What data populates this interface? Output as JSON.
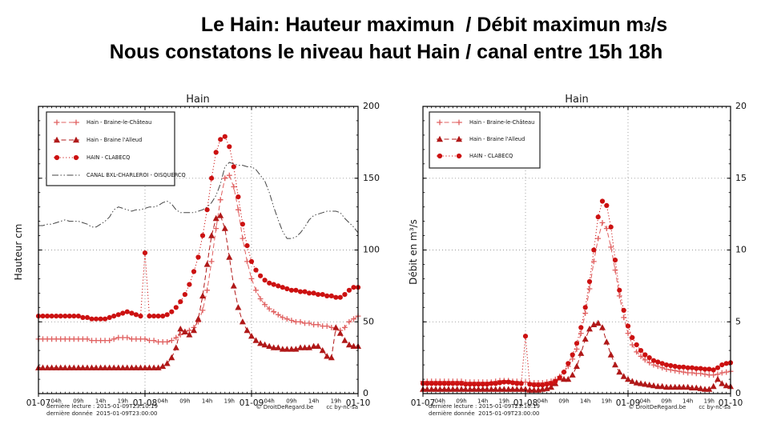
{
  "header": {
    "title_line1": {
      "pre": "Le Hain: Hauteur maximun  / Débit maximun m",
      "sub": "3",
      "post": "/s"
    },
    "title_line2": "Nous constatons le niveau haut Hain / canal entre 15h 18h"
  },
  "footer": {
    "last_read": "dernière lecture : 2015-01-09T23:10:19",
    "last_data": "dernière donnée  2015-01-09T23:00:00",
    "copyright": "© DroitDeRegard.be",
    "license": "cc by-nc-sa"
  },
  "chart_data": [
    {
      "type": "line",
      "title": "Hain",
      "ylabel": "Hauteur cm",
      "ylim": [
        0,
        200
      ],
      "yticks": [
        0,
        50,
        100,
        150,
        200
      ],
      "y_minor_step": 10,
      "x_hours": 72,
      "x_major_ticks": [
        {
          "h": 0,
          "label": "01-07"
        },
        {
          "h": 24,
          "label": "01-08"
        },
        {
          "h": 48,
          "label": "01-09"
        },
        {
          "h": 72,
          "label": "01-10"
        }
      ],
      "x_minor_labels": [
        {
          "h": 4,
          "label": "04h"
        },
        {
          "h": 9,
          "label": "09h"
        },
        {
          "h": 14,
          "label": "14h"
        },
        {
          "h": 19,
          "label": "19h"
        },
        {
          "h": 28,
          "label": "04h"
        },
        {
          "h": 33,
          "label": "09h"
        },
        {
          "h": 38,
          "label": "14h"
        },
        {
          "h": 43,
          "label": "19h"
        },
        {
          "h": 52,
          "label": "04h"
        },
        {
          "h": 57,
          "label": "09h"
        },
        {
          "h": 62,
          "label": "14h"
        },
        {
          "h": 67,
          "label": "19h"
        }
      ],
      "grid_v_hours": [
        24,
        48
      ],
      "grid_color": "#999999",
      "series": [
        {
          "name": "Hain - Braine-le-Château",
          "color": "#e06060",
          "marker": "plus",
          "line": "dashed",
          "values": [
            38,
            38,
            38,
            38,
            38,
            38,
            38,
            38,
            38,
            38,
            38,
            38,
            37,
            37,
            37,
            37,
            37,
            38,
            39,
            39,
            39,
            38,
            38,
            38,
            38,
            37,
            37,
            36,
            36,
            36,
            37,
            39,
            41,
            43,
            44,
            46,
            50,
            58,
            72,
            92,
            115,
            135,
            150,
            152,
            144,
            128,
            108,
            92,
            80,
            72,
            66,
            62,
            59,
            57,
            55,
            53,
            52,
            51,
            50,
            50,
            49,
            49,
            48,
            48,
            47,
            47,
            46,
            45,
            44,
            46,
            50,
            52,
            54
          ]
        },
        {
          "name": "Hain - Braine l'Alleud",
          "color": "#b01818",
          "marker": "triangle",
          "line": "dashed",
          "values": [
            18,
            18,
            18,
            18,
            18,
            18,
            18,
            18,
            18,
            18,
            18,
            18,
            18,
            18,
            18,
            18,
            18,
            18,
            18,
            18,
            18,
            18,
            18,
            18,
            18,
            18,
            18,
            18,
            19,
            21,
            25,
            32,
            45,
            43,
            41,
            44,
            52,
            68,
            90,
            110,
            122,
            124,
            115,
            95,
            75,
            60,
            50,
            44,
            40,
            37,
            35,
            34,
            33,
            32,
            32,
            31,
            31,
            31,
            31,
            32,
            32,
            32,
            33,
            33,
            30,
            26,
            25,
            46,
            42,
            37,
            34,
            33,
            33
          ]
        },
        {
          "name": "HAIN - CLABECQ",
          "color": "#cc1111",
          "marker": "circle",
          "line": "dotted",
          "values": [
            54,
            54,
            54,
            54,
            54,
            54,
            54,
            54,
            54,
            54,
            53,
            53,
            52,
            52,
            52,
            52,
            53,
            54,
            55,
            56,
            57,
            56,
            55,
            54,
            98,
            54,
            54,
            54,
            54,
            55,
            57,
            60,
            64,
            69,
            76,
            85,
            95,
            110,
            128,
            150,
            168,
            177,
            179,
            172,
            158,
            137,
            118,
            103,
            92,
            86,
            82,
            79,
            77,
            76,
            75,
            74,
            73,
            72,
            72,
            71,
            71,
            70,
            70,
            69,
            69,
            68,
            68,
            67,
            67,
            69,
            72,
            74,
            74
          ]
        },
        {
          "name": "CANAL BXL-CHARLEROI - OISQUERCQ",
          "color": "#444444",
          "marker": "none",
          "line": "dashdot",
          "values": [
            117,
            117,
            118,
            118,
            119,
            120,
            121,
            120,
            120,
            120,
            119,
            118,
            116,
            116,
            118,
            120,
            123,
            128,
            130,
            129,
            128,
            127,
            128,
            128,
            129,
            130,
            130,
            131,
            133,
            134,
            132,
            128,
            126,
            126,
            126,
            126,
            127,
            128,
            130,
            133,
            138,
            146,
            158,
            161,
            160,
            159,
            159,
            158,
            158,
            156,
            152,
            148,
            140,
            130,
            121,
            113,
            108,
            108,
            109,
            112,
            116,
            121,
            124,
            125,
            126,
            127,
            127,
            127,
            126,
            122,
            119,
            116,
            112
          ]
        }
      ]
    },
    {
      "type": "line",
      "title": "Hain",
      "ylabel": "Débit en m³/s",
      "ylim": [
        0,
        20
      ],
      "yticks": [
        0,
        5,
        10,
        15,
        20
      ],
      "y_minor_step": 1,
      "x_hours": 72,
      "x_major_ticks": [
        {
          "h": 0,
          "label": "01-07"
        },
        {
          "h": 24,
          "label": "01-08"
        },
        {
          "h": 48,
          "label": "01-09"
        },
        {
          "h": 72,
          "label": "01-10"
        }
      ],
      "x_minor_labels": [
        {
          "h": 4,
          "label": "04h"
        },
        {
          "h": 9,
          "label": "09h"
        },
        {
          "h": 14,
          "label": "14h"
        },
        {
          "h": 19,
          "label": "19h"
        },
        {
          "h": 28,
          "label": "04h"
        },
        {
          "h": 33,
          "label": "09h"
        },
        {
          "h": 38,
          "label": "14h"
        },
        {
          "h": 43,
          "label": "19h"
        },
        {
          "h": 52,
          "label": "04h"
        },
        {
          "h": 57,
          "label": "09h"
        },
        {
          "h": 62,
          "label": "14h"
        },
        {
          "h": 67,
          "label": "19h"
        }
      ],
      "grid_v_hours": [
        24,
        48
      ],
      "grid_color": "#999999",
      "series": [
        {
          "name": "Hain - Braine-le-Château",
          "color": "#e06060",
          "marker": "plus",
          "line": "dashed",
          "values": [
            0.85,
            0.85,
            0.85,
            0.85,
            0.85,
            0.85,
            0.85,
            0.85,
            0.85,
            0.85,
            0.8,
            0.8,
            0.8,
            0.8,
            0.8,
            0.8,
            0.8,
            0.85,
            0.9,
            0.9,
            0.9,
            0.85,
            0.85,
            0.8,
            0.8,
            0.75,
            0.75,
            0.75,
            0.75,
            0.8,
            0.85,
            1.0,
            1.2,
            1.5,
            1.9,
            2.4,
            3.1,
            4.2,
            5.6,
            7.3,
            9.2,
            10.8,
            11.9,
            11.5,
            10.2,
            8.6,
            6.8,
            5.3,
            4.2,
            3.4,
            2.9,
            2.6,
            2.35,
            2.15,
            2.0,
            1.9,
            1.8,
            1.7,
            1.65,
            1.6,
            1.55,
            1.5,
            1.45,
            1.45,
            1.4,
            1.4,
            1.35,
            1.3,
            1.3,
            1.35,
            1.45,
            1.5,
            1.55
          ]
        },
        {
          "name": "Hain - Braine l'Alleud",
          "color": "#b01818",
          "marker": "triangle",
          "line": "dashed",
          "values": [
            0.3,
            0.3,
            0.3,
            0.3,
            0.3,
            0.3,
            0.3,
            0.3,
            0.3,
            0.3,
            0.3,
            0.3,
            0.3,
            0.3,
            0.3,
            0.3,
            0.3,
            0.3,
            0.3,
            0.3,
            0.3,
            0.3,
            0.3,
            0.3,
            0.3,
            0.25,
            0.25,
            0.25,
            0.3,
            0.35,
            0.45,
            0.7,
            1.1,
            1.0,
            1.0,
            1.3,
            1.9,
            2.8,
            3.8,
            4.5,
            4.8,
            4.9,
            4.6,
            3.6,
            2.7,
            2.0,
            1.5,
            1.2,
            1.0,
            0.85,
            0.75,
            0.7,
            0.65,
            0.6,
            0.55,
            0.5,
            0.5,
            0.45,
            0.45,
            0.45,
            0.45,
            0.45,
            0.45,
            0.4,
            0.4,
            0.35,
            0.3,
            0.3,
            0.5,
            1.0,
            0.7,
            0.55,
            0.5
          ]
        },
        {
          "name": "HAIN - CLABECQ",
          "color": "#cc1111",
          "marker": "circle",
          "line": "dotted",
          "values": [
            0.7,
            0.7,
            0.7,
            0.7,
            0.7,
            0.7,
            0.7,
            0.7,
            0.7,
            0.7,
            0.65,
            0.65,
            0.65,
            0.65,
            0.65,
            0.65,
            0.7,
            0.7,
            0.75,
            0.8,
            0.8,
            0.75,
            0.7,
            0.7,
            4.0,
            0.65,
            0.6,
            0.6,
            0.6,
            0.65,
            0.7,
            0.85,
            1.1,
            1.5,
            2.1,
            2.7,
            3.5,
            4.6,
            6.0,
            7.8,
            10.0,
            12.3,
            13.4,
            13.1,
            11.6,
            9.3,
            7.2,
            5.8,
            4.7,
            3.9,
            3.4,
            3.0,
            2.7,
            2.5,
            2.3,
            2.2,
            2.1,
            2.0,
            1.95,
            1.9,
            1.85,
            1.85,
            1.8,
            1.8,
            1.75,
            1.75,
            1.7,
            1.7,
            1.65,
            1.8,
            2.0,
            2.1,
            2.15
          ]
        }
      ]
    }
  ]
}
